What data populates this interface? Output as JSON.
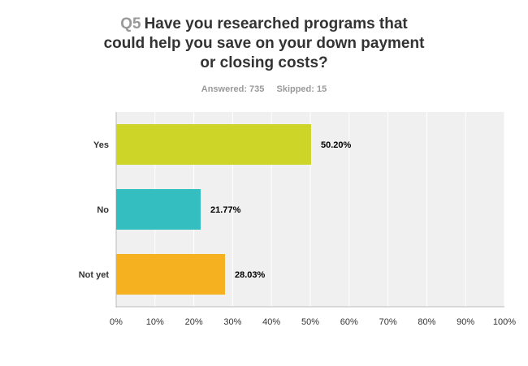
{
  "header": {
    "question_number": "Q5",
    "question_line1": "Have you researched programs that",
    "question_line2": "could help you save on your down payment",
    "question_line3": "or closing costs?"
  },
  "summary": {
    "answered": "Answered: 735",
    "skipped": "Skipped: 15"
  },
  "chart_data": {
    "type": "bar",
    "orientation": "horizontal",
    "categories": [
      "Yes",
      "No",
      "Not yet"
    ],
    "values": [
      50.2,
      21.77,
      28.03
    ],
    "value_labels": [
      "50.20%",
      "21.77%",
      "28.03%"
    ],
    "colors": [
      "#cdd529",
      "#34bec0",
      "#f6b120"
    ],
    "xlim": [
      0,
      100
    ],
    "x_ticks": [
      "0%",
      "10%",
      "20%",
      "30%",
      "40%",
      "50%",
      "60%",
      "70%",
      "80%",
      "90%",
      "100%"
    ],
    "grid": true,
    "background": "#f0f0f0",
    "gridline_color": "#ffffff"
  }
}
